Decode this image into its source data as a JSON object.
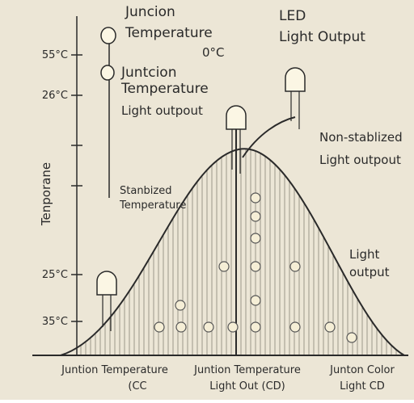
{
  "header": {
    "title": "Juncion Temperature",
    "title_value": "0°C",
    "right_title": "LED Light Output"
  },
  "labels": {
    "junction": "Juntcion Temperature",
    "light": "Light outpout",
    "non_stabilized": "Non-stablized Light outpout",
    "stabilized": "Stanbized Temperature",
    "light_output": "Light output",
    "y_axis": "Tenporane"
  },
  "axis_ticks": [
    "55°C",
    "26°C",
    "25°C",
    "35°C"
  ],
  "x_labels": [
    [
      "Juntion Temperature",
      "(CC"
    ],
    [
      "Juntion Temperature",
      "Light Out (CD)"
    ],
    [
      "Junton Color",
      "Light CD"
    ]
  ]
}
